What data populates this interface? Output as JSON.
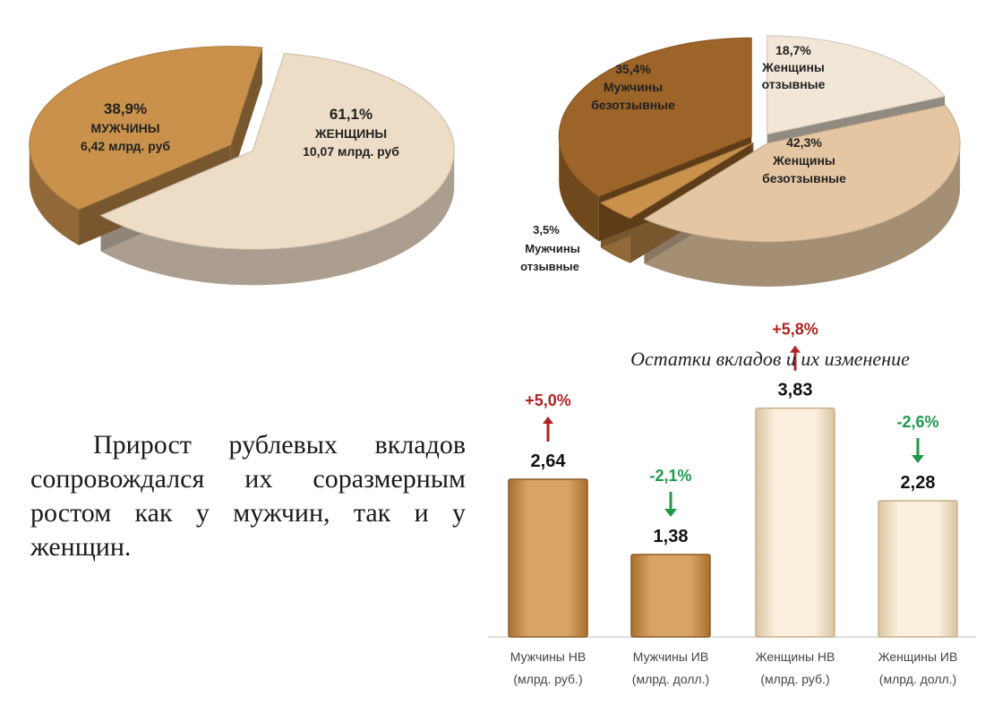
{
  "chart_data": [
    {
      "type": "pie",
      "slices": [
        {
          "name": "МУЖЧИНЫ",
          "percent_label": "38,9%",
          "value": 38.9,
          "amount_label": "6,42 млрд. руб",
          "amount": 6.42,
          "color": "#c9914c"
        },
        {
          "name": "ЖЕНЩИНЫ",
          "percent_label": "61,1%",
          "value": 61.1,
          "amount_label": "10,07 млрд. руб",
          "amount": 10.07,
          "color": "#eddcc6"
        }
      ]
    },
    {
      "type": "pie",
      "slices": [
        {
          "name_line1": "Женщины",
          "name_line2": "отзывные",
          "percent_label": "18,7%",
          "value": 18.7,
          "color": "#f2e6d6"
        },
        {
          "name_line1": "Женщины",
          "name_line2": "безотзывные",
          "percent_label": "42,3%",
          "value": 42.3,
          "color": "#e4c7a2"
        },
        {
          "name_line1": "Мужчины",
          "name_line2": "отзывные",
          "percent_label": "3,5%",
          "value": 3.5,
          "color": "#c9914c"
        },
        {
          "name_line1": "Мужчины",
          "name_line2": "безотзывные",
          "percent_label": "35,4%",
          "value": 35.4,
          "color": "#9c6428"
        }
      ]
    },
    {
      "type": "bar",
      "title": "Остатки вкладов и их изменение",
      "categories": [
        {
          "line1": "Мужчины НВ",
          "line2": "(млрд. руб.)"
        },
        {
          "line1": "Мужчины ИВ",
          "line2": "(млрд. долл.)"
        },
        {
          "line1": "Женщины НВ",
          "line2": "(млрд. руб.)"
        },
        {
          "line1": "Женщины ИВ",
          "line2": "(млрд. долл.)"
        }
      ],
      "values": [
        2.64,
        1.38,
        3.83,
        2.28
      ],
      "value_labels": [
        "2,64",
        "1,38",
        "3,83",
        "2,28"
      ],
      "changes": [
        "+5,0%",
        "-2,1%",
        "+5,8%",
        "-2,6%"
      ],
      "change_direction": [
        "up",
        "down",
        "up",
        "down"
      ],
      "colors": [
        "#cf9a5a",
        "#cf9a5a",
        "#f5e6cf",
        "#f5e6cf"
      ],
      "up_color": "#b22222",
      "down_color": "#1f9a4b",
      "ylim": [
        0,
        4.5
      ]
    }
  ],
  "text": {
    "paragraph": "Прирост рублевых вкладов сопровождался их соразмерным ростом как у мужчин, так и у женщин."
  }
}
